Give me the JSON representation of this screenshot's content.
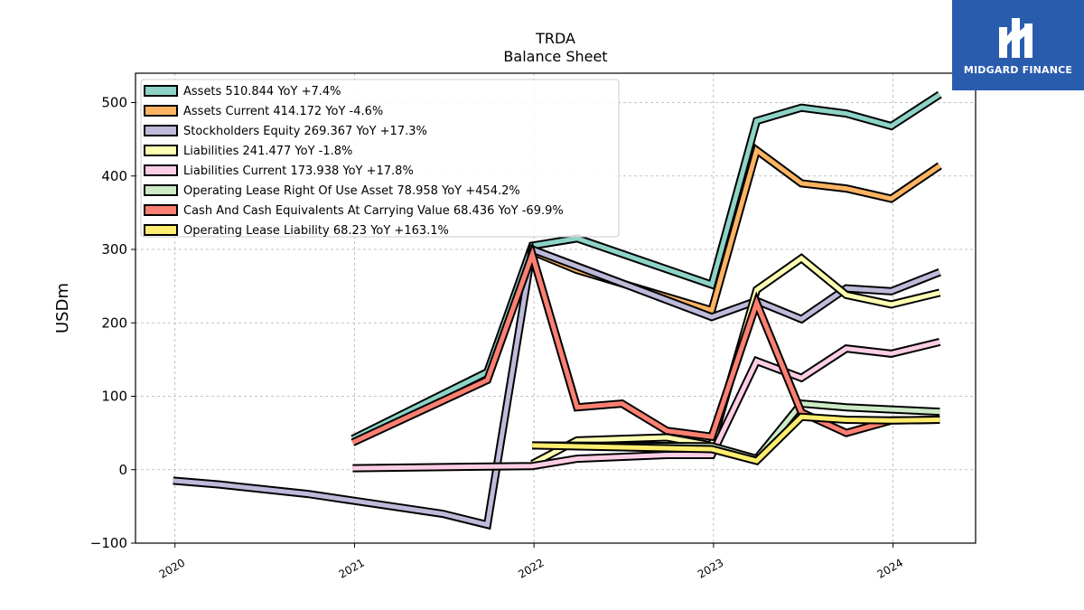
{
  "brand": {
    "name": "MIDGARD FINANCE",
    "color": "#2a5cae"
  },
  "chart_data": {
    "type": "line",
    "title": "TRDA",
    "subtitle": "Balance  Sheet",
    "ylabel": "USDm",
    "xlabel": "",
    "ylim": [
      -100,
      540
    ],
    "xlim": [
      2019.78,
      2024.46
    ],
    "yticks": [
      -100,
      0,
      100,
      200,
      300,
      400,
      500
    ],
    "ytick_labels": [
      "−100",
      "0",
      "100",
      "200",
      "300",
      "400",
      "500"
    ],
    "xticks": [
      2020,
      2021,
      2022,
      2023,
      2024
    ],
    "xtick_labels": [
      "2020",
      "2021",
      "2022",
      "2023",
      "2024"
    ],
    "grid": true,
    "legend_position": "top-left",
    "series": [
      {
        "name": "Assets",
        "legend": "Assets  510.844 YoY +7.4%",
        "color": "#8dd3c7",
        "points": [
          [
            2020.99,
            42
          ],
          [
            2021.74,
            133
          ],
          [
            2021.99,
            305
          ],
          [
            2022.24,
            315
          ],
          [
            2022.99,
            252
          ],
          [
            2023.24,
            475
          ],
          [
            2023.49,
            493
          ],
          [
            2023.74,
            485
          ],
          [
            2023.99,
            468
          ],
          [
            2024.26,
            511
          ]
        ]
      },
      {
        "name": "Assets Current",
        "legend": "Assets Current  414.172 YoY -4.6%",
        "color": "#fdb462",
        "points": [
          [
            2021.99,
            297
          ],
          [
            2022.24,
            272
          ],
          [
            2022.99,
            217
          ],
          [
            2023.24,
            435
          ],
          [
            2023.49,
            390
          ],
          [
            2023.74,
            383
          ],
          [
            2023.99,
            369
          ],
          [
            2024.26,
            414
          ]
        ]
      },
      {
        "name": "Stockholders Equity",
        "legend": "Stockholders Equity  269.367 YoY +17.3%",
        "color": "#bebada",
        "points": [
          [
            2019.99,
            -15
          ],
          [
            2020.24,
            -20
          ],
          [
            2020.74,
            -33
          ],
          [
            2020.99,
            -42
          ],
          [
            2021.49,
            -60
          ],
          [
            2021.74,
            -75
          ],
          [
            2021.99,
            300
          ],
          [
            2022.99,
            208
          ],
          [
            2023.24,
            230
          ],
          [
            2023.49,
            205
          ],
          [
            2023.74,
            247
          ],
          [
            2023.99,
            243
          ],
          [
            2024.26,
            269
          ]
        ]
      },
      {
        "name": "Liabilities",
        "legend": "Liabilities  241.477 YoY -1.8%",
        "color": "#ffffb3",
        "points": [
          [
            2021.99,
            8
          ],
          [
            2022.24,
            40
          ],
          [
            2022.49,
            42
          ],
          [
            2022.74,
            44
          ],
          [
            2022.99,
            33
          ],
          [
            2023.24,
            245
          ],
          [
            2023.49,
            288
          ],
          [
            2023.74,
            238
          ],
          [
            2023.99,
            225
          ],
          [
            2024.26,
            241
          ]
        ]
      },
      {
        "name": "Liabilities Current",
        "legend": "Liabilities Current  173.938 YoY +17.8%",
        "color": "#fccde5",
        "points": [
          [
            2020.99,
            2
          ],
          [
            2021.99,
            5
          ],
          [
            2022.24,
            15
          ],
          [
            2022.74,
            20
          ],
          [
            2022.99,
            20
          ],
          [
            2023.24,
            148
          ],
          [
            2023.49,
            125
          ],
          [
            2023.74,
            165
          ],
          [
            2023.99,
            158
          ],
          [
            2024.26,
            174
          ]
        ]
      },
      {
        "name": "Operating Lease Right Of Use Asset",
        "legend": "Operating Lease Right Of Use Asset  78.958 YoY +454.2%",
        "color": "#ccebc5",
        "points": [
          [
            2021.99,
            33
          ],
          [
            2022.99,
            32
          ],
          [
            2023.24,
            15
          ],
          [
            2023.49,
            90
          ],
          [
            2023.74,
            85
          ],
          [
            2023.99,
            82
          ],
          [
            2024.26,
            79
          ]
        ]
      },
      {
        "name": "Cash And Cash Equivalents At Carrying Value",
        "legend": "Cash And Cash Equivalents At Carrying Value  68.436 YoY -69.9%",
        "color": "#fb8072",
        "points": [
          [
            2020.99,
            37
          ],
          [
            2021.74,
            122
          ],
          [
            2021.99,
            293
          ],
          [
            2022.24,
            85
          ],
          [
            2022.49,
            90
          ],
          [
            2022.74,
            53
          ],
          [
            2022.99,
            45
          ],
          [
            2023.24,
            227
          ],
          [
            2023.49,
            78
          ],
          [
            2023.74,
            50
          ],
          [
            2023.99,
            67
          ],
          [
            2024.26,
            68
          ]
        ]
      },
      {
        "name": "Operating Lease Liability",
        "legend": "Operating Lease Liability  68.23 YoY +163.1%",
        "color": "#ffed6f",
        "points": [
          [
            2021.99,
            33
          ],
          [
            2022.99,
            28
          ],
          [
            2023.24,
            12
          ],
          [
            2023.49,
            72
          ],
          [
            2023.74,
            68
          ],
          [
            2023.99,
            67
          ],
          [
            2024.26,
            68
          ]
        ]
      }
    ]
  }
}
